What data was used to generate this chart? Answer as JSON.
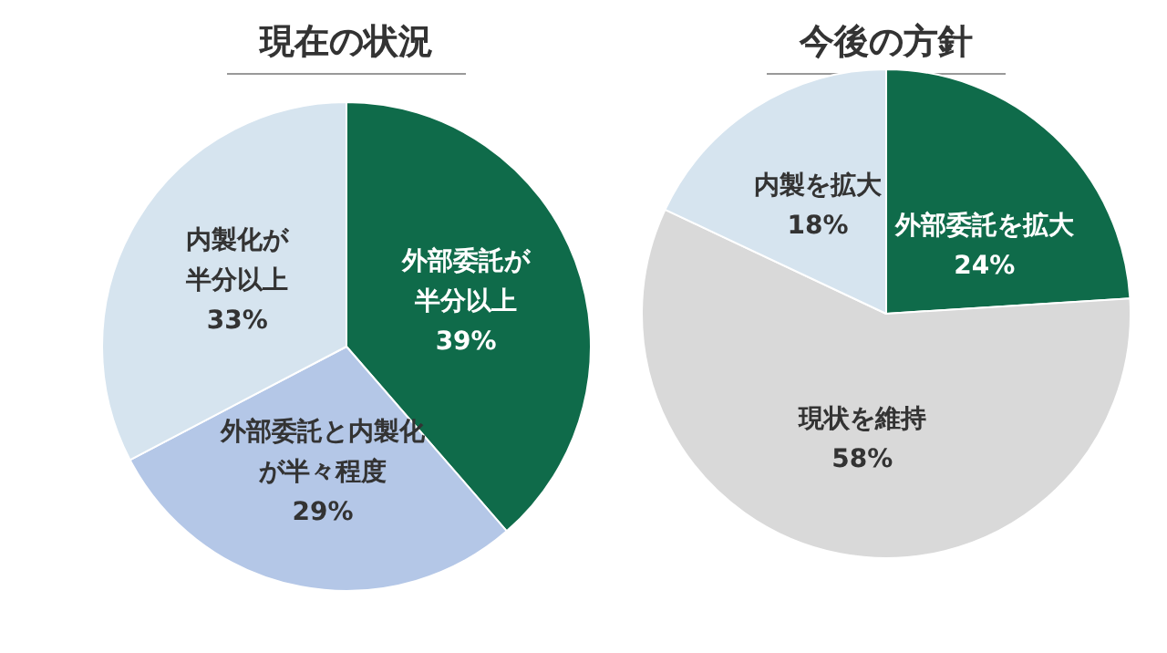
{
  "chart_data": [
    {
      "type": "pie",
      "title": "現在の状況",
      "categories": [
        "外部委託が半分以上",
        "外部委託と内製化が半々程度",
        "内製化が半分以上"
      ],
      "values": [
        39,
        29,
        33
      ],
      "colors": [
        "#0f6b4a",
        "#b4c7e7",
        "#d6e4ef"
      ],
      "value_labels": [
        "39%",
        "29%",
        "33%"
      ],
      "legend": false
    },
    {
      "type": "pie",
      "title": "今後の方針",
      "categories": [
        "外部委託を拡大",
        "現状を維持",
        "内製を拡大"
      ],
      "values": [
        24,
        58,
        18
      ],
      "colors": [
        "#0f6b4a",
        "#d9d9d9",
        "#d6e4ef"
      ],
      "value_labels": [
        "24%",
        "58%",
        "18%"
      ],
      "legend": false
    }
  ]
}
